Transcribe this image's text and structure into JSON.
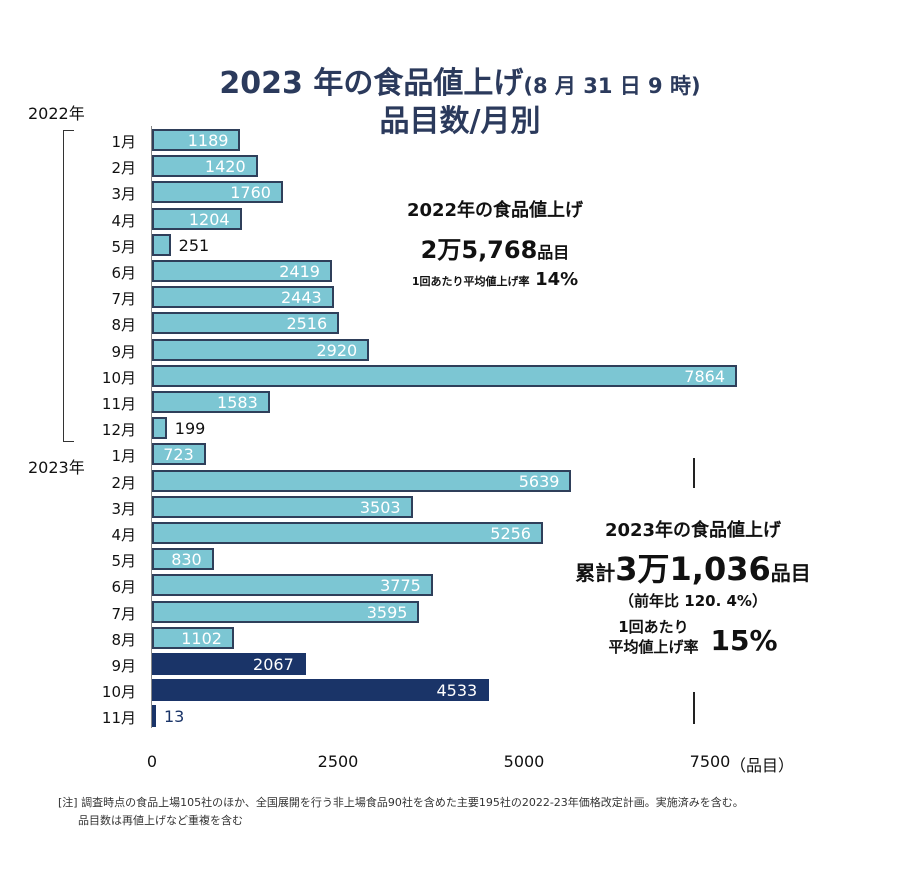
{
  "title": {
    "main": "2023 年の食品値上げ",
    "sub": "(8 月 31 日 9 時)",
    "line2": "品目数/月別"
  },
  "year_labels": {
    "y2022": "2022年",
    "y2023": "2023年"
  },
  "summary_2022": {
    "heading": "2022年の食品値上げ",
    "count": "2万5,768",
    "count_unit": "品目",
    "rate_label": "1回あたり平均値上げ率",
    "rate": "14%"
  },
  "summary_2023": {
    "heading": "2023年の食品値上げ",
    "prefix": "累計",
    "count": "3万1,036",
    "count_unit": "品目",
    "yoy": "（前年比 120. 4%）",
    "rate_label1": "1回あたり",
    "rate_label2": "平均値上げ率",
    "rate": "15%"
  },
  "note": {
    "line1": "[注]  調査時点の食品上場105社のほか、全国展開を行う非上場食品90社を含めた主要195社の2022-23年価格改定計画。実施済みを含む。",
    "line2": "品目数は再値上げなど重複を含む"
  },
  "chart_data": {
    "type": "bar",
    "orientation": "horizontal",
    "categories": [
      "1月",
      "2月",
      "3月",
      "4月",
      "5月",
      "6月",
      "7月",
      "8月",
      "9月",
      "10月",
      "11月",
      "12月",
      "1月",
      "2月",
      "3月",
      "4月",
      "5月",
      "6月",
      "7月",
      "8月",
      "9月",
      "10月",
      "11月"
    ],
    "years": [
      "2022",
      "2022",
      "2022",
      "2022",
      "2022",
      "2022",
      "2022",
      "2022",
      "2022",
      "2022",
      "2022",
      "2022",
      "2023",
      "2023",
      "2023",
      "2023",
      "2023",
      "2023",
      "2023",
      "2023",
      "2023",
      "2023",
      "2023"
    ],
    "values": [
      1189,
      1420,
      1760,
      1204,
      251,
      2419,
      2443,
      2516,
      2920,
      7864,
      1583,
      199,
      723,
      5639,
      3503,
      5256,
      830,
      3775,
      3595,
      1102,
      2067,
      4533,
      13
    ],
    "highlight": [
      false,
      false,
      false,
      false,
      false,
      false,
      false,
      false,
      false,
      false,
      false,
      false,
      false,
      false,
      false,
      false,
      false,
      false,
      false,
      false,
      true,
      true,
      true
    ],
    "xlim": [
      0,
      7864
    ],
    "xticks": [
      "0",
      "2500",
      "5000",
      "7500"
    ],
    "xtick_values": [
      0,
      2500,
      5000,
      7500
    ],
    "xlabel": "（品目）",
    "colors": {
      "bar": "#7cc6d3",
      "highlight": "#1a3468",
      "border": "#2f3f5a"
    },
    "grid": false
  }
}
